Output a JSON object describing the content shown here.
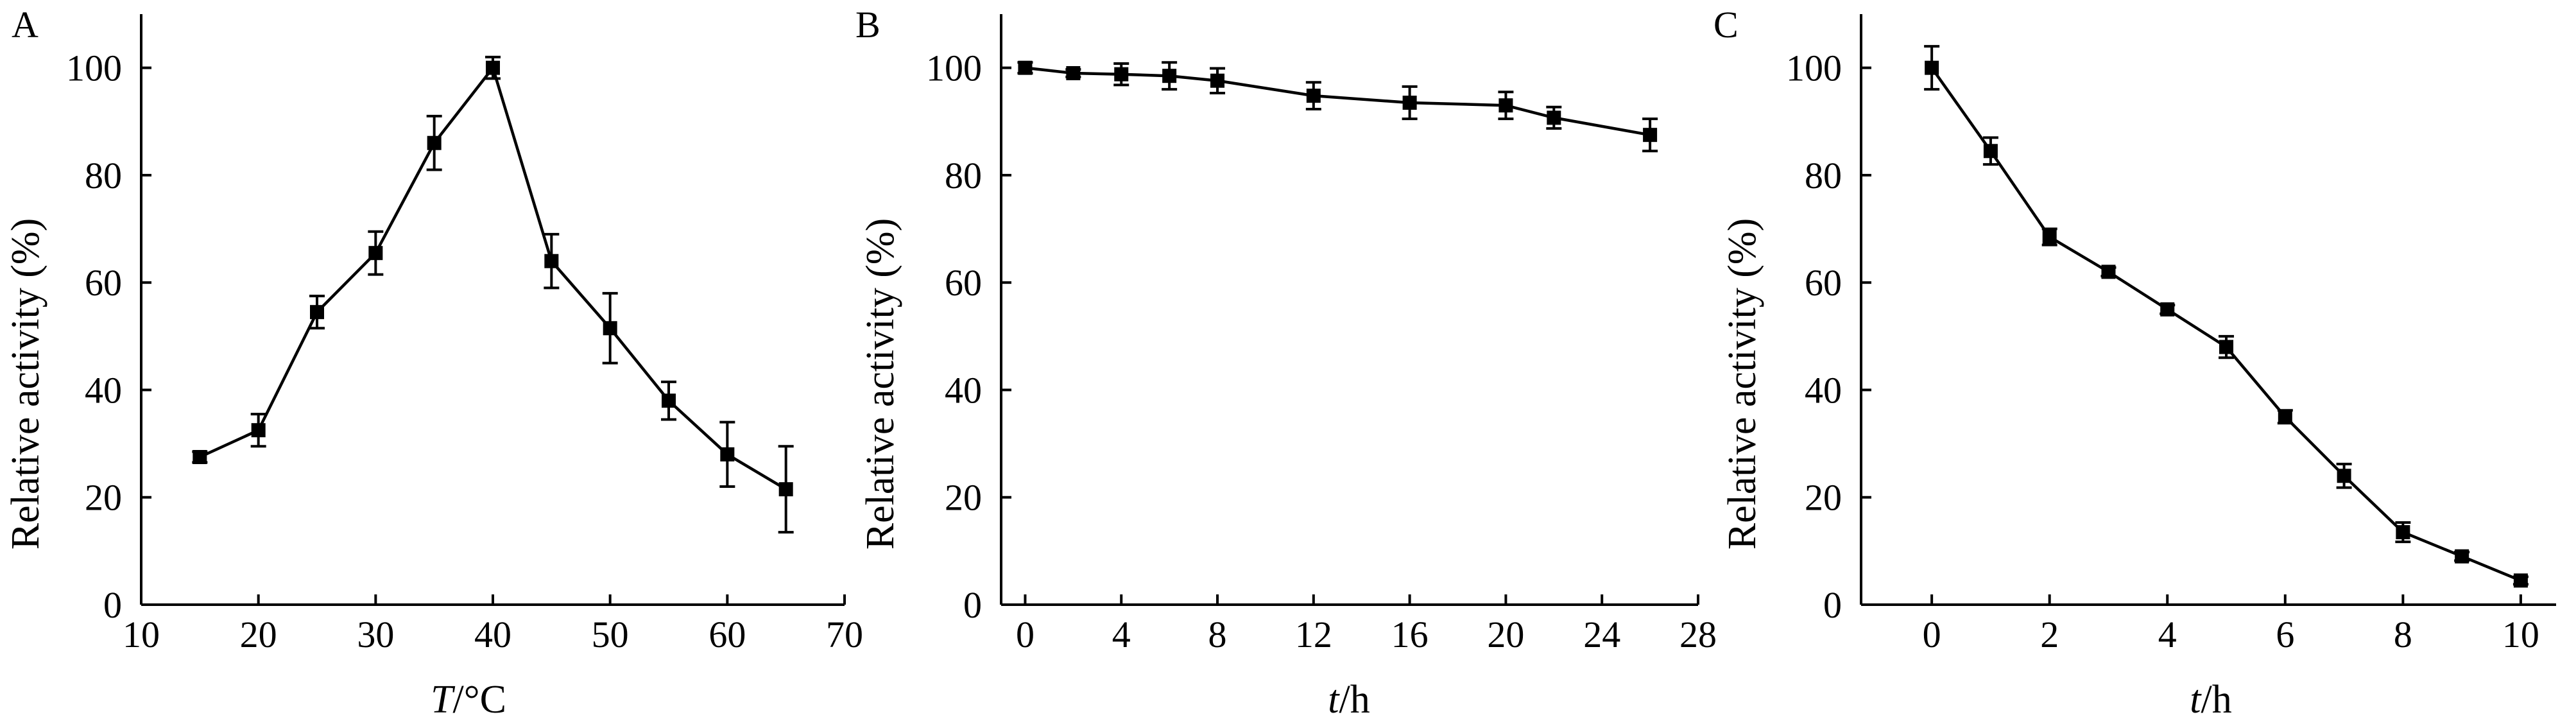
{
  "chart_data": [
    {
      "type": "line",
      "panel_label": "A",
      "xlabel_italic": "T",
      "xlabel_rest": "/°C",
      "ylabel": "Relative activity (%)",
      "xlim": [
        10,
        70
      ],
      "ylim": [
        0,
        110
      ],
      "xticks": [
        10,
        20,
        30,
        40,
        50,
        60,
        70
      ],
      "yticks": [
        0,
        20,
        40,
        60,
        80,
        100
      ],
      "grid": false,
      "marker": "square",
      "series": [
        {
          "x": [
            15,
            20,
            25,
            30,
            35,
            40,
            45,
            50,
            55,
            60,
            65
          ],
          "y": [
            27.5,
            32.5,
            54.5,
            65.5,
            86,
            100,
            64,
            51.5,
            38,
            28,
            21.5
          ],
          "error": [
            1,
            3,
            3,
            4,
            5,
            2,
            5,
            6.5,
            3.5,
            6,
            8
          ]
        }
      ]
    },
    {
      "type": "line",
      "panel_label": "B",
      "xlabel_italic": "t",
      "xlabel_rest": "/h",
      "ylabel": "Relative activity (%)",
      "xlim": [
        -1,
        28
      ],
      "ylim": [
        0,
        110
      ],
      "xticks": [
        0,
        4,
        8,
        12,
        16,
        20,
        24,
        28
      ],
      "yticks": [
        0,
        20,
        40,
        60,
        80,
        100
      ],
      "grid": false,
      "marker": "square",
      "series": [
        {
          "x": [
            0,
            2,
            4,
            6,
            8,
            12,
            16,
            20,
            22,
            26
          ],
          "y": [
            100,
            99,
            98.8,
            98.5,
            97.6,
            94.8,
            93.5,
            93,
            90.7,
            87.5
          ],
          "error": [
            1,
            0.7,
            2,
            2.5,
            2.3,
            2.5,
            3,
            2.5,
            2,
            3
          ]
        }
      ]
    },
    {
      "type": "line",
      "panel_label": "C",
      "xlabel_italic": "t",
      "xlabel_rest": "/h",
      "ylabel": "Relative activity (%)",
      "xlim": [
        -1.2,
        10.6
      ],
      "ylim": [
        0,
        110
      ],
      "xticks": [
        0,
        2,
        4,
        6,
        8,
        10
      ],
      "yticks": [
        0,
        20,
        40,
        60,
        80,
        100
      ],
      "grid": false,
      "marker": "square",
      "series": [
        {
          "x": [
            0,
            1,
            2,
            3,
            4,
            5,
            6,
            7,
            8,
            9,
            10
          ],
          "y": [
            100,
            84.5,
            68.5,
            62,
            55,
            48,
            35,
            24,
            13.5,
            9,
            4.5
          ],
          "error": [
            4,
            2.5,
            1.5,
            0.8,
            0.8,
            2,
            1.2,
            2.2,
            1.8,
            0.8,
            0.7
          ]
        }
      ]
    }
  ]
}
